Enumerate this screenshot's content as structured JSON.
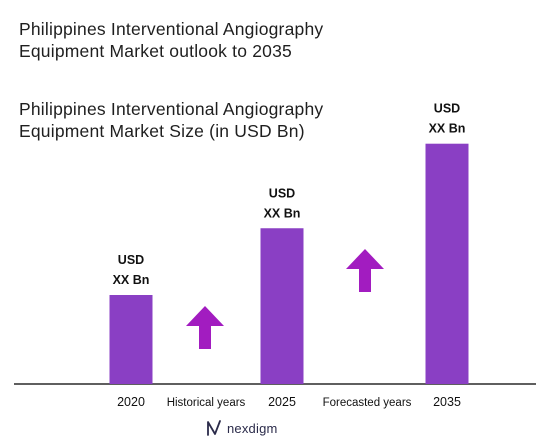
{
  "title": "Philippines Interventional Angiography Equipment Market outlook to 2035",
  "subtitle": "Philippines Interventional Angiography Equipment Market Size (in USD Bn)",
  "chart_data": {
    "type": "bar",
    "categories": [
      "2020",
      "2025",
      "2035"
    ],
    "values": [
      1.0,
      1.75,
      2.7
    ],
    "bar_labels": [
      [
        "USD",
        "XX Bn"
      ],
      [
        "USD",
        "XX Bn"
      ],
      [
        "USD",
        "XX Bn"
      ]
    ],
    "period_labels": [
      "Historical years",
      "Forecasted years"
    ],
    "ylim": [
      0,
      3
    ],
    "bar_color": "#8a3fc4",
    "arrow_color": "#a21cc0",
    "grid": false
  },
  "logo": {
    "text": "nexdigm",
    "icon": "nexdigm-n-logo-icon"
  }
}
